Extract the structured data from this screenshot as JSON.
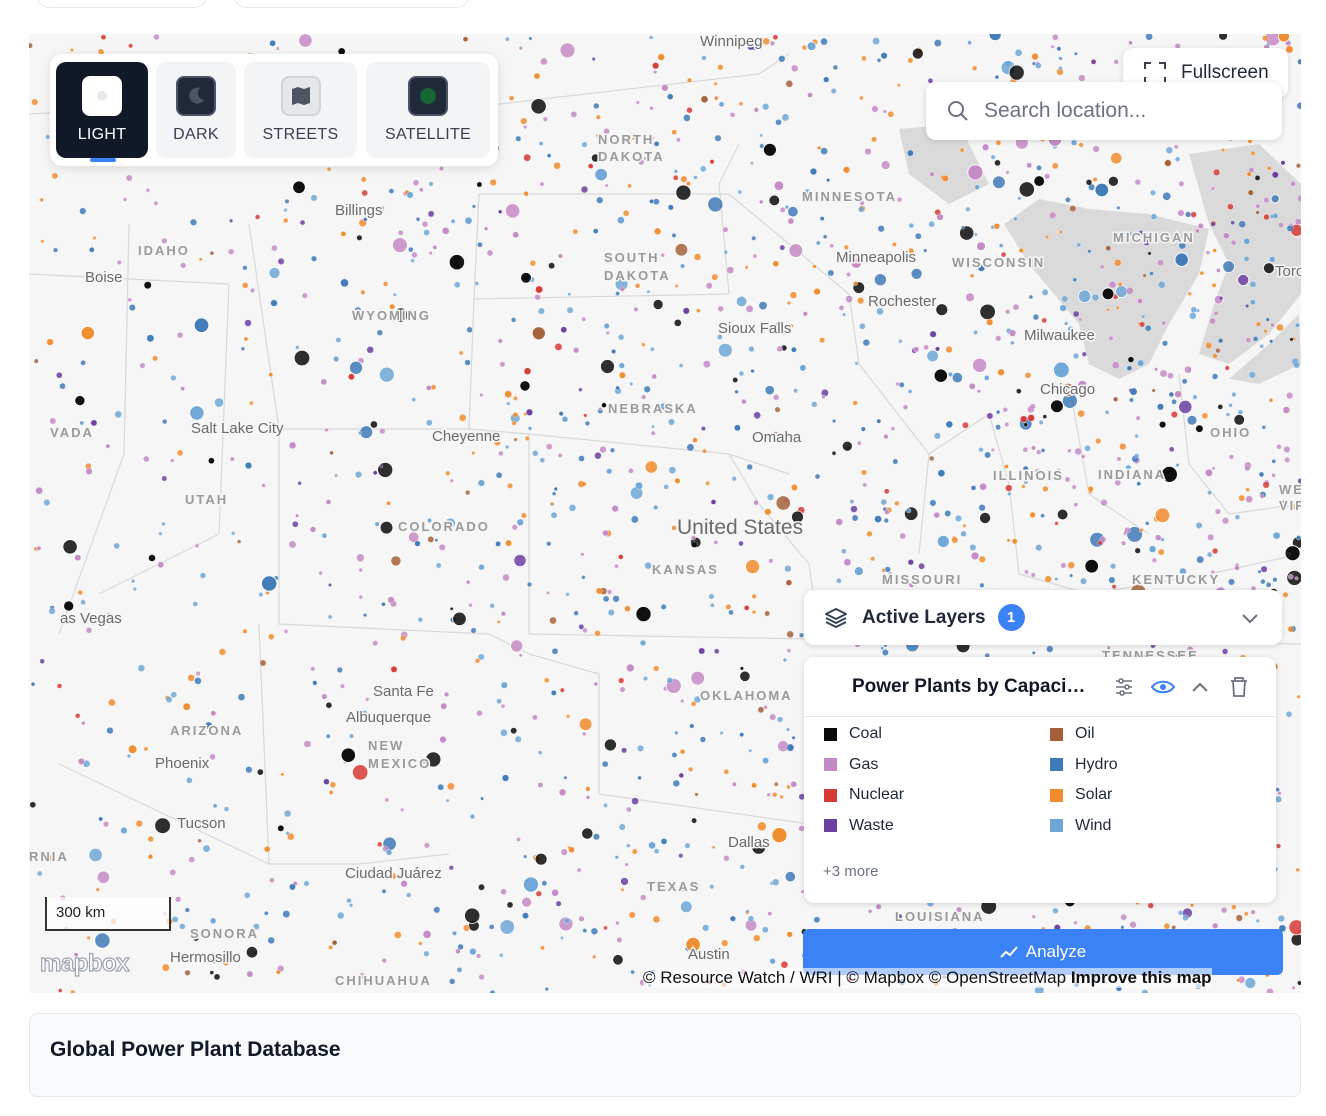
{
  "basemap_styles": [
    {
      "label": "LIGHT",
      "active": true
    },
    {
      "label": "DARK",
      "active": false
    },
    {
      "label": "STREETS",
      "active": false
    },
    {
      "label": "SATELLITE",
      "active": false
    }
  ],
  "fullscreen": "Fullscreen",
  "search_placeholder": "Search location...",
  "map_labels": [
    "Winnipeg",
    "NORTH",
    "DAKOTA",
    "MINNESOTA",
    "SOUTH",
    "DAKOTA",
    "Billings",
    "IDAHO",
    "Boise",
    "WYOMING",
    "Sioux Falls",
    "Minneapolis",
    "Rochester",
    "WISCONSIN",
    "MICHIGAN",
    "Toronto",
    "Milwaukee",
    "Chicago",
    "NEBRASKA",
    "Omaha",
    "Salt Lake City",
    "Cheyenne",
    "VADA",
    "ILLINOIS",
    "INDIANA",
    "OHIO",
    "UTAH",
    "COLORADO",
    "United States",
    "KANSAS",
    "MISSOURI",
    "KENTUCKY",
    "as Vegas",
    "Santa Fe",
    "Albuquerque",
    "NEW",
    "MEXICO",
    "OKLAHOMA",
    "ARIZONA",
    "Phoenix",
    "Tucson",
    "Dallas",
    "Ciudad Juárez",
    "TEXAS",
    "SONORA",
    "Hermosillo",
    "Austin",
    "CHIHUAHUA",
    "RNIA",
    "WEST",
    "VIRGIN",
    "TENNESSEE",
    "LOUISIANA"
  ],
  "active_layers": {
    "title": "Active Layers",
    "count": "1",
    "layer": {
      "name": "Power Plants by Capaci…",
      "legend": [
        {
          "label": "Coal",
          "color": "#0a0a0a"
        },
        {
          "label": "Oil",
          "color": "#a5603a"
        },
        {
          "label": "Gas",
          "color": "#c48ac6"
        },
        {
          "label": "Hydro",
          "color": "#3f7ab8"
        },
        {
          "label": "Nuclear",
          "color": "#d63a34"
        },
        {
          "label": "Solar",
          "color": "#f08c2e"
        },
        {
          "label": "Waste",
          "color": "#6b40a0"
        },
        {
          "label": "Wind",
          "color": "#6ea6d6"
        }
      ],
      "more": "+3 more"
    }
  },
  "analyze": "Analyze",
  "scale": "300 km",
  "logo": "mapbox",
  "attribution": "© Resource Watch / WRI | © Mapbox © OpenStreetMap",
  "improve": "Improve this map",
  "footer_title": "Global Power Plant Database"
}
